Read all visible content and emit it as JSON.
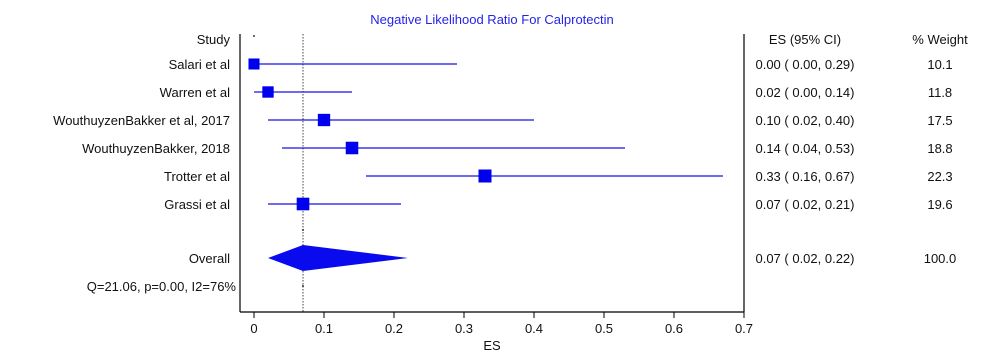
{
  "chart_data": {
    "type": "forest",
    "title": "Negative Likelihood Ratio For Calprotectin",
    "xlabel": "ES",
    "xlim": [
      -0.02,
      0.7
    ],
    "xticks": [
      0,
      0.1,
      0.2,
      0.3,
      0.4,
      0.5,
      0.6,
      0.7
    ],
    "xtick_labels": [
      "0",
      "0.1",
      "0.2",
      "0.3",
      "0.4",
      "0.5",
      "0.6",
      "0.7"
    ],
    "left_header": "Study",
    "es_header": "ES (95% CI)",
    "weight_header": "% Weight",
    "reference_line": 0.07,
    "studies": [
      {
        "name": "Salari et al",
        "es": 0.0,
        "lower": 0.0,
        "upper": 0.29,
        "weight": 10.1,
        "es_text": "0.00  (  0.00,  0.29)",
        "weight_text": "10.1"
      },
      {
        "name": "Warren et al",
        "es": 0.02,
        "lower": 0.0,
        "upper": 0.14,
        "weight": 11.8,
        "es_text": "0.02  (  0.00,  0.14)",
        "weight_text": "11.8"
      },
      {
        "name": "WouthuyzenBakker et al, 2017",
        "es": 0.1,
        "lower": 0.02,
        "upper": 0.4,
        "weight": 17.5,
        "es_text": "0.10  (  0.02,  0.40)",
        "weight_text": "17.5"
      },
      {
        "name": "WouthuyzenBakker, 2018",
        "es": 0.14,
        "lower": 0.04,
        "upper": 0.53,
        "weight": 18.8,
        "es_text": "0.14  (  0.04,  0.53)",
        "weight_text": "18.8"
      },
      {
        "name": "Trotter et al",
        "es": 0.33,
        "lower": 0.16,
        "upper": 0.67,
        "weight": 22.3,
        "es_text": "0.33  (  0.16,  0.67)",
        "weight_text": "22.3"
      },
      {
        "name": "Grassi et al",
        "es": 0.07,
        "lower": 0.02,
        "upper": 0.21,
        "weight": 19.6,
        "es_text": "0.07  (  0.02,  0.21)",
        "weight_text": "19.6"
      }
    ],
    "overall": {
      "name": "Overall",
      "es": 0.07,
      "lower": 0.02,
      "upper": 0.22,
      "es_text": "0.07  (  0.02,  0.22)",
      "weight_text": "100.0"
    },
    "heterogeneity": "Q=21.06, p=0.00, I2=76%",
    "colors": {
      "title": "#2424e6",
      "ci_line": "#1414e0",
      "marker": "#0000ee",
      "diamond": "#0a0aee",
      "axis": "#000000"
    }
  }
}
